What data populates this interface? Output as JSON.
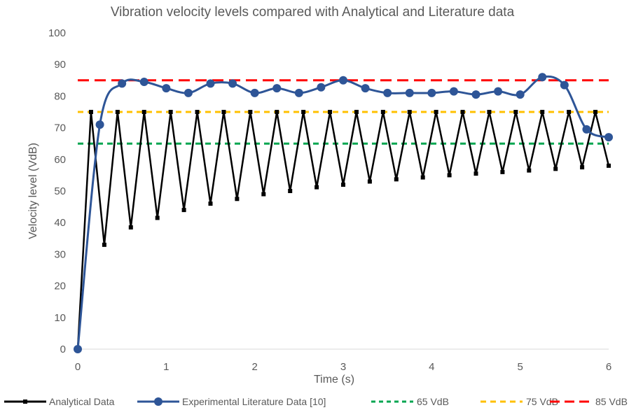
{
  "chart_data": {
    "type": "line",
    "title": "Vibration velocity levels compared with Analytical and Literature data",
    "xlabel": "Time (s)",
    "ylabel": "Velocity level (VdB)",
    "xlim": [
      0,
      6
    ],
    "ylim": [
      0,
      100
    ],
    "x_ticks": [
      "0",
      "1",
      "2",
      "3",
      "4",
      "5",
      "6"
    ],
    "y_ticks": [
      "0",
      "10",
      "20",
      "30",
      "40",
      "50",
      "60",
      "70",
      "80",
      "90",
      "100"
    ],
    "grid": false,
    "legend_position": "bottom",
    "series": [
      {
        "name": "Analytical Data",
        "color": "#000000",
        "style": "solid-square-markers",
        "x": [
          0,
          0.15,
          0.3,
          0.45,
          0.6,
          0.75,
          0.9,
          1.05,
          1.2,
          1.35,
          1.5,
          1.65,
          1.8,
          1.95,
          2.1,
          2.25,
          2.4,
          2.55,
          2.7,
          2.85,
          3.0,
          3.15,
          3.3,
          3.45,
          3.6,
          3.75,
          3.9,
          4.05,
          4.2,
          4.35,
          4.5,
          4.65,
          4.8,
          4.95,
          5.1,
          5.25,
          5.4,
          5.55,
          5.7,
          5.85,
          6.0
        ],
        "values": [
          0,
          75,
          33,
          75,
          38.5,
          75,
          41.5,
          75,
          44,
          75,
          46,
          75,
          47.5,
          75,
          49,
          75,
          50,
          75,
          51.2,
          75,
          52,
          75,
          53,
          75,
          53.7,
          75,
          54.3,
          75,
          55,
          75,
          55.5,
          75,
          56,
          75,
          56.5,
          75,
          57,
          75,
          57.5,
          75,
          58
        ]
      },
      {
        "name": "Experimental Literature Data [10]",
        "color": "#2e5597",
        "style": "smooth-circle-markers",
        "x": [
          0,
          0.25,
          0.5,
          0.75,
          1.0,
          1.25,
          1.5,
          1.75,
          2.0,
          2.25,
          2.5,
          2.75,
          3.0,
          3.25,
          3.5,
          3.75,
          4.0,
          4.25,
          4.5,
          4.75,
          5.0,
          5.25,
          5.5,
          5.75,
          6.0
        ],
        "values": [
          0,
          71,
          84,
          84.5,
          82.5,
          81,
          84,
          84,
          81,
          82.5,
          81,
          82.8,
          85,
          82.5,
          81,
          81,
          81,
          81.5,
          80.5,
          81.5,
          80.5,
          86,
          83.5,
          69.5,
          67
        ]
      },
      {
        "name": "65 VdB",
        "color": "#00a650",
        "style": "dashed",
        "x": [
          0,
          6
        ],
        "values": [
          65,
          65
        ]
      },
      {
        "name": "75 VdB",
        "color": "#ffc000",
        "style": "dashed",
        "x": [
          0,
          6
        ],
        "values": [
          75,
          75
        ]
      },
      {
        "name": "85 VdB",
        "color": "#ff0000",
        "style": "dashed",
        "x": [
          0,
          6
        ],
        "values": [
          85,
          85
        ]
      }
    ]
  }
}
